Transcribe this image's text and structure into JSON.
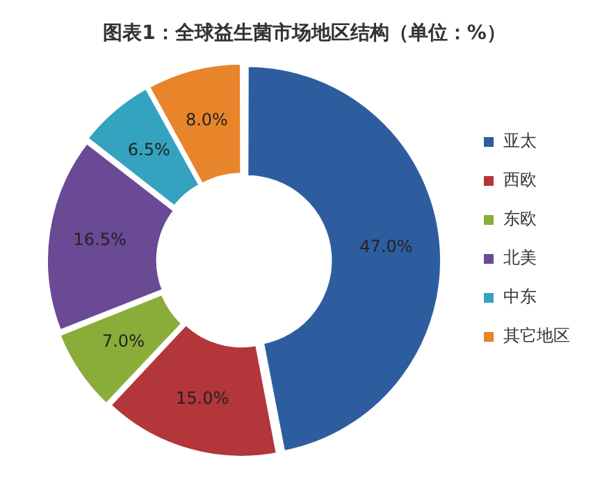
{
  "chart_data": {
    "type": "donut",
    "title": "图表1：全球益生菌市场地区结构（单位：%）",
    "categories": [
      "亚太",
      "西欧",
      "东欧",
      "北美",
      "中东",
      "其它地区"
    ],
    "values": [
      47.0,
      15.0,
      7.0,
      16.5,
      6.5,
      8.0
    ],
    "colors": [
      "#2e5d9f",
      "#b3363a",
      "#8aad3a",
      "#6a4a94",
      "#34a3bf",
      "#e8842a"
    ],
    "value_labels": [
      "47.0%",
      "15.0%",
      "7.0%",
      "16.5%",
      "6.5%",
      "8.0%"
    ],
    "legend": "right"
  }
}
